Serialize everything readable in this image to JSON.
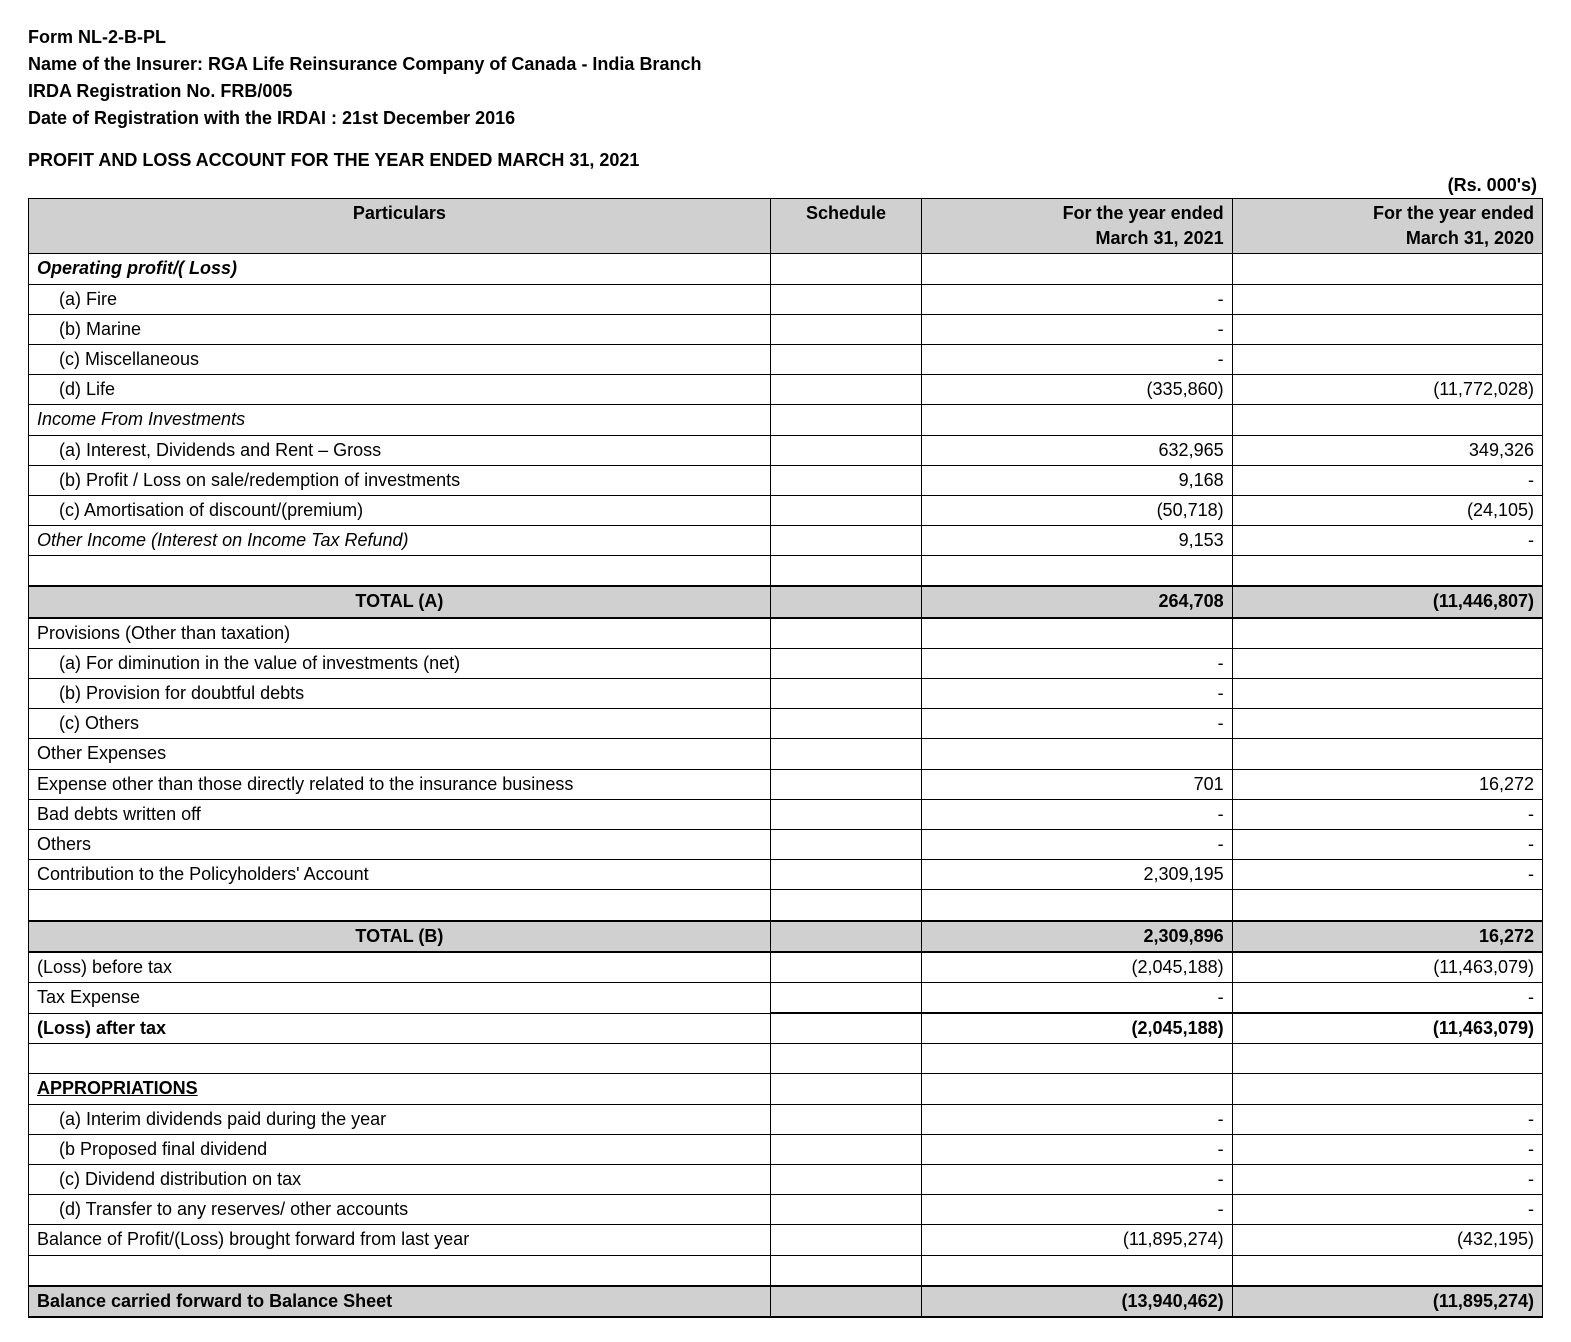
{
  "header": {
    "form": "Form NL-2-B-PL",
    "insurer": "Name of the Insurer: RGA Life Reinsurance Company of Canada - India Branch",
    "reg_no": "IRDA Registration No.  FRB/005",
    "reg_date": "Date of Registration with the IRDAI : 21st December 2016",
    "title": "PROFIT AND LOSS ACCOUNT FOR THE YEAR ENDED MARCH 31, 2021",
    "unit": "(Rs. 000's)"
  },
  "columns": {
    "particulars": "Particulars",
    "schedule": "Schedule",
    "yr1_a": "For the year ended",
    "yr1_b": "March 31, 2021",
    "yr2_a": "For the year ended",
    "yr2_b": "March 31, 2020"
  },
  "rows": {
    "op_profit": "Operating profit/( Loss)",
    "fire": "(a) Fire",
    "marine": "(b) Marine",
    "misc": "(c) Miscellaneous",
    "life": "(d) Life",
    "life_v1": "(335,860)",
    "life_v2": "(11,772,028)",
    "inv_income": "Income From Investments",
    "int_div": "(a) Interest, Dividends and Rent – Gross",
    "int_div_v1": "632,965",
    "int_div_v2": "349,326",
    "pl_sale": "(b) Profit / Loss on sale/redemption of investments",
    "pl_sale_v1": "9,168",
    "amort": "(c) Amortisation of discount/(premium)",
    "amort_v1": "(50,718)",
    "amort_v2": "(24,105)",
    "other_income": "Other Income (Interest on Income Tax Refund)",
    "other_income_v1": "9,153",
    "total_a": "TOTAL (A)",
    "total_a_v1": "264,708",
    "total_a_v2": "(11,446,807)",
    "provisions": "Provisions (Other than taxation)",
    "dimin": "(a) For diminution in the value of investments (net)",
    "doubtful": "(b) Provision for doubtful debts",
    "others_prov": "(c) Others",
    "other_exp": "Other Expenses",
    "exp_other": "Expense other than those directly related to the insurance business",
    "exp_other_v1": "701",
    "exp_other_v2": "16,272",
    "bad_debts": "Bad debts written off",
    "others_exp": "Others",
    "contrib": "Contribution to the Policyholders' Account",
    "contrib_v1": "2,309,195",
    "total_b": "TOTAL (B)",
    "total_b_v1": "2,309,896",
    "total_b_v2": "16,272",
    "loss_before": "(Loss) before tax",
    "loss_before_v1": "(2,045,188)",
    "loss_before_v2": "(11,463,079)",
    "tax_exp": "Tax Expense",
    "loss_after": "(Loss) after tax",
    "loss_after_v1": "(2,045,188)",
    "loss_after_v2": "(11,463,079)",
    "appropriations": "APPROPRIATIONS",
    "interim": "(a) Interim dividends paid during the year",
    "proposed": "(b Proposed final dividend",
    "div_tax": "(c) Dividend distribution on tax",
    "transfer": "(d) Transfer to any reserves/ other accounts",
    "bal_fwd": "Balance of Profit/(Loss) brought forward from last year",
    "bal_fwd_v1": "(11,895,274)",
    "bal_fwd_v2": "(432,195)",
    "bal_carried": "Balance carried forward to Balance Sheet",
    "bal_carried_v1": "(13,940,462)",
    "bal_carried_v2": "(11,895,274)",
    "dash": "-"
  }
}
